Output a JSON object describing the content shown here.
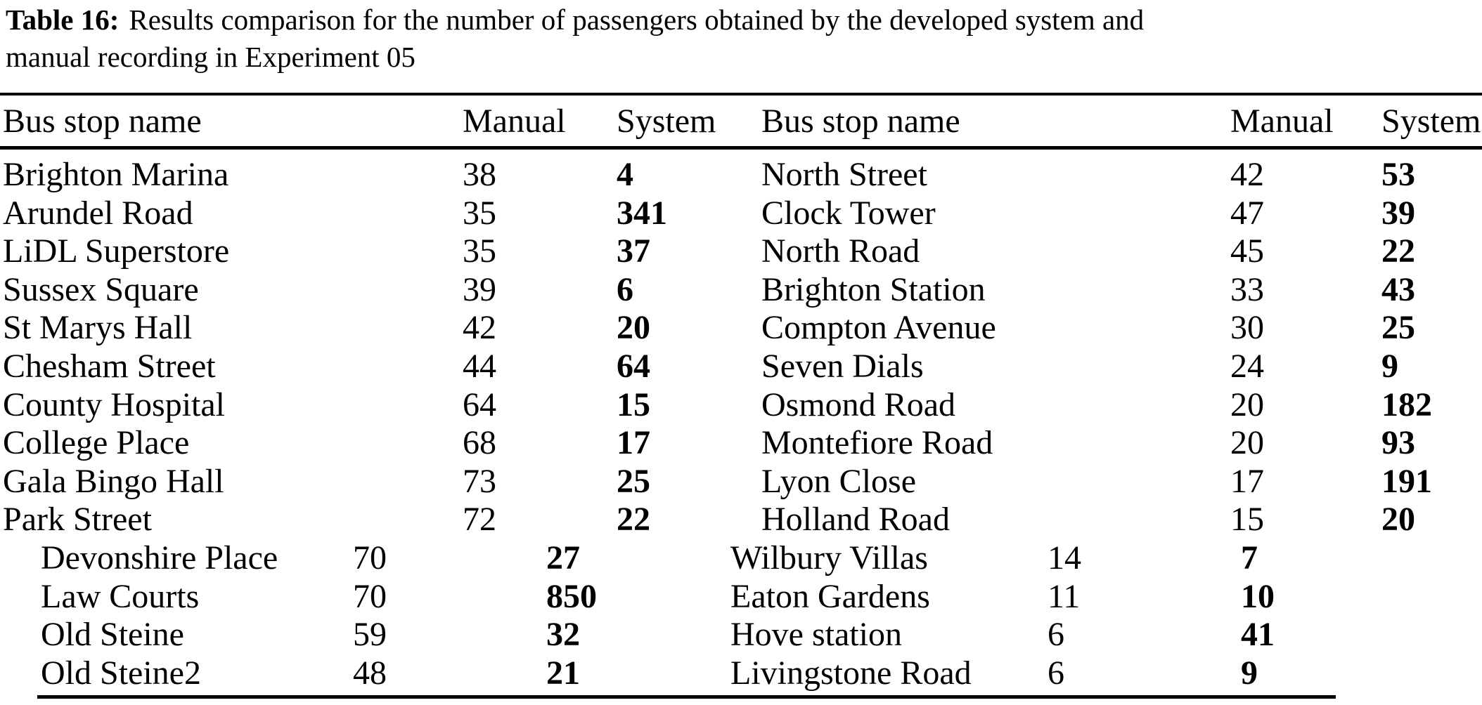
{
  "colors": {
    "text": "#000000",
    "background": "#ffffff"
  },
  "caption": {
    "label": "Table 16:",
    "line1_rest": "Results comparison for the number of passengers obtained by the developed system and",
    "line2": "manual recording in Experiment 05"
  },
  "header": {
    "left": {
      "name": "Bus stop name",
      "manual": "Manual",
      "system": "System"
    },
    "right": {
      "name": "Bus stop name",
      "manual": "Manual",
      "system": "System"
    }
  },
  "rows_main": [
    {
      "l_name": "Brighton Marina",
      "l_manual": 38,
      "l_system": 4,
      "r_name": "North Street",
      "r_manual": 42,
      "r_system": 53
    },
    {
      "l_name": "Arundel Road",
      "l_manual": 35,
      "l_system": 341,
      "r_name": "Clock Tower",
      "r_manual": 47,
      "r_system": 39
    },
    {
      "l_name": "LiDL Superstore",
      "l_manual": 35,
      "l_system": 37,
      "r_name": "North Road",
      "r_manual": 45,
      "r_system": 22
    },
    {
      "l_name": "Sussex Square",
      "l_manual": 39,
      "l_system": 6,
      "r_name": "Brighton Station",
      "r_manual": 33,
      "r_system": 43
    },
    {
      "l_name": "St Marys Hall",
      "l_manual": 42,
      "l_system": 20,
      "r_name": "Compton Avenue",
      "r_manual": 30,
      "r_system": 25
    },
    {
      "l_name": "Chesham Street",
      "l_manual": 44,
      "l_system": 64,
      "r_name": "Seven Dials",
      "r_manual": 24,
      "r_system": 9
    },
    {
      "l_name": "County Hospital",
      "l_manual": 64,
      "l_system": 15,
      "r_name": "Osmond Road",
      "r_manual": 20,
      "r_system": 182
    },
    {
      "l_name": "College Place",
      "l_manual": 68,
      "l_system": 17,
      "r_name": "Montefiore Road",
      "r_manual": 20,
      "r_system": 93
    },
    {
      "l_name": "Gala Bingo Hall",
      "l_manual": 73,
      "l_system": 25,
      "r_name": "Lyon Close",
      "r_manual": 17,
      "r_system": 191
    },
    {
      "l_name": "Park Street",
      "l_manual": 72,
      "l_system": 22,
      "r_name": "Holland Road",
      "r_manual": 15,
      "r_system": 20
    }
  ],
  "rows_shifted": [
    {
      "l_name": "Devonshire Place",
      "l_manual": 70,
      "l_system": 27,
      "r_name": "Wilbury Villas",
      "r_manual": 14,
      "r_system": 7
    },
    {
      "l_name": "Law Courts",
      "l_manual": 70,
      "l_system": 850,
      "r_name": "Eaton Gardens",
      "r_manual": 11,
      "r_system": 10
    },
    {
      "l_name": "Old Steine",
      "l_manual": 59,
      "l_system": 32,
      "r_name": "Hove station",
      "r_manual": 6,
      "r_system": 41
    },
    {
      "l_name": "Old Steine2",
      "l_manual": 48,
      "l_system": 21,
      "r_name": "Livingstone Road",
      "r_manual": 6,
      "r_system": 9
    }
  ]
}
